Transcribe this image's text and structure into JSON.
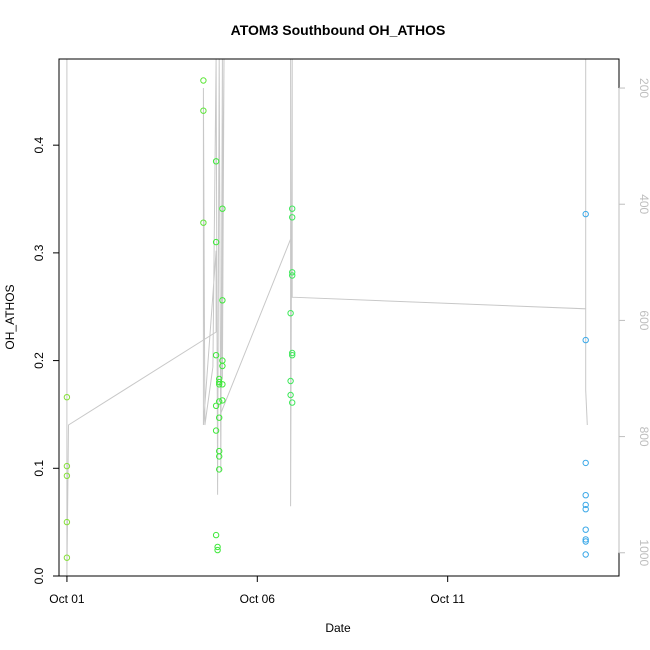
{
  "chart_data": {
    "type": "scatter",
    "title": "ATOM3 Southbound OH_ATHOS",
    "xlabel": "Date",
    "ylabel": "OH_ATHOS",
    "x_ticks": [
      "Oct 01",
      "Oct 06",
      "Oct 11"
    ],
    "x_tick_values": [
      "2016-10-01",
      "2016-10-06",
      "2016-10-11"
    ],
    "xlim": [
      "2016-09-30T19:00",
      "2016-10-15T12:00"
    ],
    "y_ticks": [
      "0.0",
      "0.1",
      "0.2",
      "0.3",
      "0.4"
    ],
    "y_tick_values": [
      0.0,
      0.1,
      0.2,
      0.3,
      0.4
    ],
    "ylim": [
      0.0,
      0.48
    ],
    "y2_ticks": [
      "200",
      "400",
      "600",
      "800",
      "1000"
    ],
    "y2_tick_values": [
      200,
      400,
      600,
      800,
      1000
    ],
    "y2lim": [
      1040,
      150
    ],
    "y2_reversed": true,
    "colors": {
      "axis": "#000000",
      "secondary": "#bebebe",
      "line": "#c8c8c8"
    },
    "series": [
      {
        "color": "#86e03a",
        "points": [
          [
            "2016-10-01T00:00",
            0.166
          ],
          [
            "2016-10-01T00:00",
            0.102
          ],
          [
            "2016-10-01T00:00",
            0.093
          ],
          [
            "2016-10-01T00:00",
            0.05
          ],
          [
            "2016-10-01T00:00",
            0.017
          ]
        ]
      },
      {
        "color": "#5ee63a",
        "points": [
          [
            "2016-10-04T14:00",
            0.46
          ],
          [
            "2016-10-04T14:00",
            0.432
          ],
          [
            "2016-10-04T14:00",
            0.328
          ]
        ]
      },
      {
        "color": "#3ee83a",
        "points": [
          [
            "2016-10-04T22:00",
            0.385
          ],
          [
            "2016-10-04T22:00",
            0.31
          ],
          [
            "2016-10-04T22:00",
            0.205
          ],
          [
            "2016-10-04T22:00",
            0.158
          ],
          [
            "2016-10-04T22:00",
            0.135
          ],
          [
            "2016-10-04T22:00",
            0.038
          ],
          [
            "2016-10-04T23:00",
            0.027
          ],
          [
            "2016-10-04T23:00",
            0.024
          ],
          [
            "2016-10-05T00:00",
            0.183
          ],
          [
            "2016-10-05T00:00",
            0.18
          ],
          [
            "2016-10-05T00:00",
            0.178
          ],
          [
            "2016-10-05T00:00",
            0.162
          ],
          [
            "2016-10-05T00:00",
            0.147
          ],
          [
            "2016-10-05T00:00",
            0.116
          ],
          [
            "2016-10-05T00:00",
            0.111
          ],
          [
            "2016-10-05T00:00",
            0.099
          ],
          [
            "2016-10-05T02:00",
            0.341
          ],
          [
            "2016-10-05T02:00",
            0.256
          ],
          [
            "2016-10-05T02:00",
            0.2
          ],
          [
            "2016-10-05T02:00",
            0.195
          ],
          [
            "2016-10-05T02:00",
            0.178
          ],
          [
            "2016-10-05T02:00",
            0.163
          ]
        ]
      },
      {
        "color": "#3ee85a",
        "points": [
          [
            "2016-10-06T21:00",
            0.244
          ],
          [
            "2016-10-06T21:00",
            0.181
          ],
          [
            "2016-10-06T21:00",
            0.168
          ],
          [
            "2016-10-06T22:00",
            0.341
          ],
          [
            "2016-10-06T22:00",
            0.333
          ],
          [
            "2016-10-06T22:00",
            0.282
          ],
          [
            "2016-10-06T22:00",
            0.279
          ],
          [
            "2016-10-06T22:00",
            0.207
          ],
          [
            "2016-10-06T22:00",
            0.205
          ],
          [
            "2016-10-06T22:00",
            0.161
          ]
        ]
      },
      {
        "color": "#3aa8e8",
        "points": [
          [
            "2016-10-14T15:00",
            0.336
          ],
          [
            "2016-10-14T15:00",
            0.219
          ],
          [
            "2016-10-14T15:00",
            0.105
          ],
          [
            "2016-10-14T15:00",
            0.075
          ],
          [
            "2016-10-14T15:00",
            0.066
          ],
          [
            "2016-10-14T15:00",
            0.062
          ],
          [
            "2016-10-14T15:00",
            0.043
          ],
          [
            "2016-10-14T15:00",
            0.034
          ],
          [
            "2016-10-14T15:00",
            0.032
          ],
          [
            "2016-10-14T15:00",
            0.02
          ]
        ]
      }
    ],
    "altitude_line": {
      "axis": "y2",
      "color": "#c8c8c8",
      "points": [
        [
          "2016-10-01T00:00",
          50
        ],
        [
          "2016-10-01T00:00",
          1040
        ],
        [
          "2016-10-01T01:00",
          780
        ],
        [
          "2016-10-04T22:00",
          620
        ],
        [
          "2016-10-04T22:00",
          480
        ],
        [
          "2016-10-04T14:00",
          780
        ],
        [
          "2016-10-04T14:00",
          200
        ],
        [
          "2016-10-04T15:00",
          780
        ],
        [
          "2016-10-04T20:00",
          680
        ],
        [
          "2016-10-04T22:00",
          50
        ],
        [
          "2016-10-04T23:00",
          900
        ],
        [
          "2016-10-05T00:00",
          50
        ],
        [
          "2016-10-05T01:00",
          860
        ],
        [
          "2016-10-05T02:00",
          50
        ],
        [
          "2016-10-05T02:00",
          700
        ],
        [
          "2016-10-05T03:00",
          50
        ],
        [
          "2016-10-05T01:00",
          760
        ],
        [
          "2016-10-06T21:00",
          460
        ],
        [
          "2016-10-06T21:00",
          50
        ],
        [
          "2016-10-06T21:00",
          920
        ],
        [
          "2016-10-06T22:00",
          50
        ],
        [
          "2016-10-06T22:00",
          560
        ],
        [
          "2016-10-14T15:00",
          580
        ],
        [
          "2016-10-14T15:00",
          50
        ],
        [
          "2016-10-14T15:00",
          720
        ],
        [
          "2016-10-14T16:00",
          780
        ]
      ]
    }
  }
}
